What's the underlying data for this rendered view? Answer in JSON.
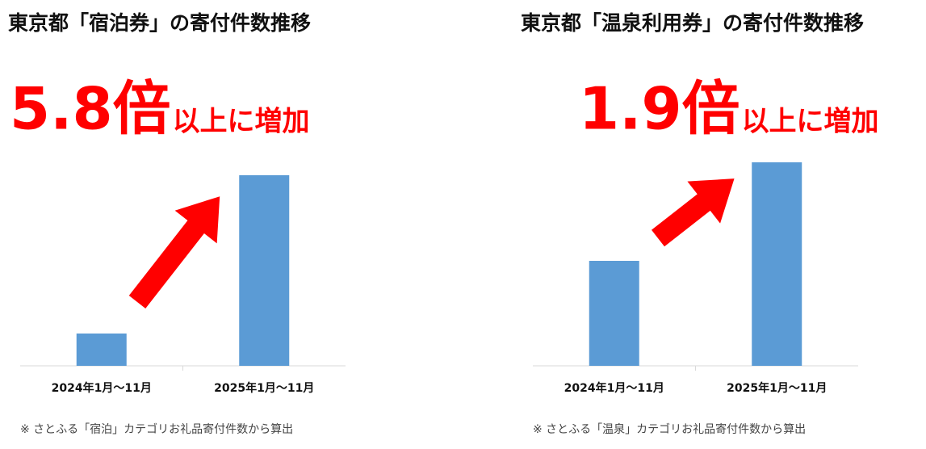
{
  "chart_data": [
    {
      "type": "bar",
      "title": "東京都「宿泊券」の寄付件数推移",
      "headline": "5.8倍",
      "headline_rest": "以上に増加",
      "categories": [
        "2024年1月～11月",
        "2025年1月～11月"
      ],
      "values": [
        40,
        236
      ],
      "color": "#5b9bd5",
      "ylim": [
        0,
        263
      ],
      "note": "※ さとふる「宿泊」カテゴリお礼品寄付件数から算出"
    },
    {
      "type": "bar",
      "title": "東京都「温泉利用券」の寄付件数推移",
      "headline": "1.9倍",
      "headline_rest": "以上に増加",
      "categories": [
        "2024年1月～11月",
        "2025年1月～11月"
      ],
      "values": [
        130,
        252
      ],
      "color": "#5b9bd5",
      "ylim": [
        0,
        263
      ],
      "note": "※ さとふる「温泉」カテゴリお礼品寄付件数から算出"
    }
  ]
}
